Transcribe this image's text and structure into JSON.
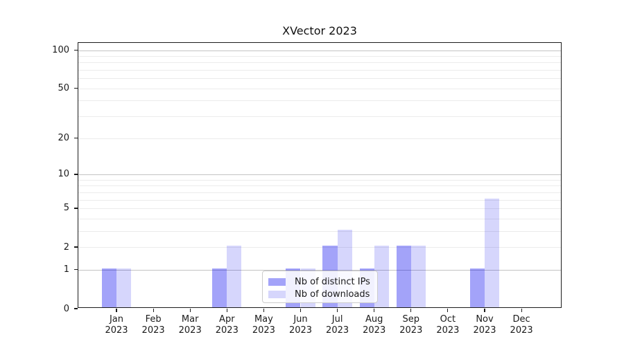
{
  "title": "XVector 2023",
  "chart_data": {
    "type": "bar",
    "title": "XVector 2023",
    "categories": [
      "Jan",
      "Feb",
      "Mar",
      "Apr",
      "May",
      "Jun",
      "Jul",
      "Aug",
      "Sep",
      "Oct",
      "Nov",
      "Dec"
    ],
    "year_label": "2023",
    "series": [
      {
        "name": "Nb of distinct IPs",
        "color": "rgba(0,0,238,0.36)",
        "values": [
          1,
          0,
          0,
          1,
          0,
          1,
          2,
          1,
          2,
          0,
          1,
          0
        ]
      },
      {
        "name": "Nb of downloads",
        "color": "rgba(0,0,238,0.16)",
        "values": [
          1,
          0,
          0,
          2,
          0,
          1,
          3,
          2,
          2,
          0,
          6,
          0
        ]
      }
    ],
    "y_axis": {
      "scale": "log1p",
      "ticks": [
        0,
        1,
        2,
        5,
        10,
        20,
        50,
        100
      ],
      "ylim": [
        0,
        114
      ],
      "major_gridlines": [
        1,
        10,
        100
      ],
      "minor_gridlines": [
        2,
        3,
        4,
        5,
        6,
        7,
        8,
        9,
        20,
        30,
        40,
        50,
        60,
        70,
        80,
        90
      ]
    },
    "x_axis": {
      "label_line2": "2023"
    },
    "legend": {
      "position": "bottom-center",
      "entries": [
        "Nb of distinct IPs",
        "Nb of downloads"
      ]
    },
    "grid": true
  },
  "colors": {
    "bar_distinct_ips": "rgba(0,0,238,0.36)",
    "bar_downloads": "rgba(0,0,238,0.16)",
    "major_grid": "#c3c3c3",
    "minor_grid": "#ebebeb",
    "axis": "#1b1b1b",
    "background": "#ffffff"
  }
}
